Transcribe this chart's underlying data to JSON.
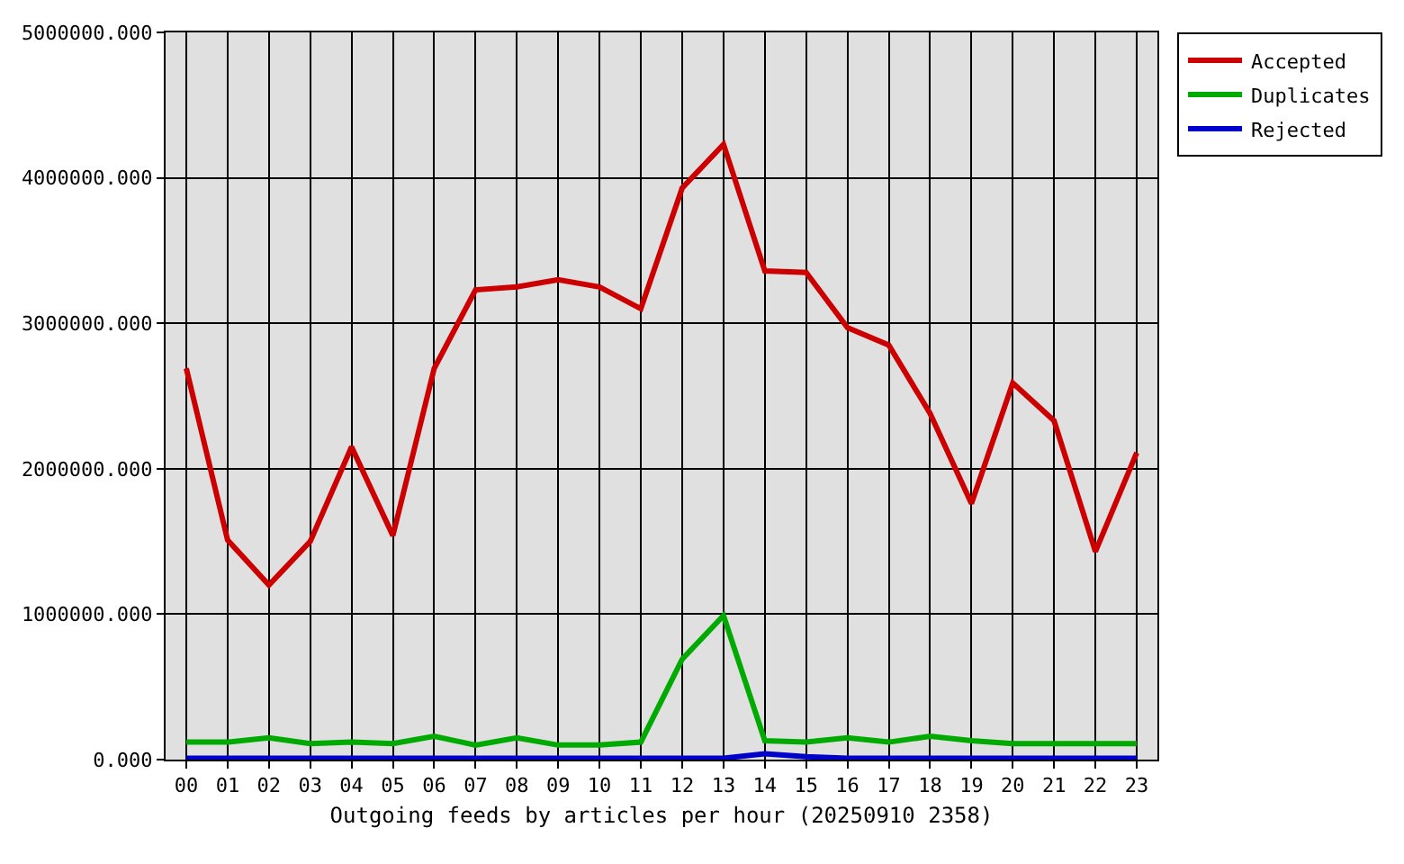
{
  "chart_data": {
    "type": "line",
    "xlabel": "Outgoing feeds by articles per hour (20250910 2358)",
    "categories": [
      "00",
      "01",
      "02",
      "03",
      "04",
      "05",
      "06",
      "07",
      "08",
      "09",
      "10",
      "11",
      "12",
      "13",
      "14",
      "15",
      "16",
      "17",
      "18",
      "19",
      "20",
      "21",
      "22",
      "23"
    ],
    "series": [
      {
        "name": "Accepted",
        "color": "#cc0000",
        "values": [
          2690000,
          1510000,
          1200000,
          1500000,
          2150000,
          1540000,
          2690000,
          3230000,
          3250000,
          3300000,
          3250000,
          3100000,
          3930000,
          4230000,
          3360000,
          3350000,
          2970000,
          2850000,
          2380000,
          1760000,
          2590000,
          2330000,
          1430000,
          2110000
        ]
      },
      {
        "name": "Duplicates",
        "color": "#00aa00",
        "values": [
          120000,
          120000,
          150000,
          110000,
          120000,
          110000,
          160000,
          100000,
          150000,
          100000,
          100000,
          120000,
          690000,
          990000,
          130000,
          120000,
          150000,
          120000,
          160000,
          130000,
          110000,
          110000,
          110000,
          110000
        ]
      },
      {
        "name": "Rejected",
        "color": "#0000cc",
        "values": [
          10000,
          10000,
          10000,
          10000,
          10000,
          10000,
          10000,
          10000,
          10000,
          10000,
          10000,
          10000,
          10000,
          10000,
          40000,
          20000,
          10000,
          10000,
          10000,
          10000,
          10000,
          10000,
          10000,
          10000
        ]
      }
    ],
    "ylim": [
      0,
      5000000
    ],
    "yticks": [
      {
        "value": 0,
        "label": "0.000"
      },
      {
        "value": 1000000,
        "label": "1000000.000"
      },
      {
        "value": 2000000,
        "label": "2000000.000"
      },
      {
        "value": 3000000,
        "label": "3000000.000"
      },
      {
        "value": 4000000,
        "label": "4000000.000"
      },
      {
        "value": 5000000,
        "label": "5000000.000"
      }
    ],
    "grid": true,
    "legend": "top right",
    "line_style": "solid"
  }
}
